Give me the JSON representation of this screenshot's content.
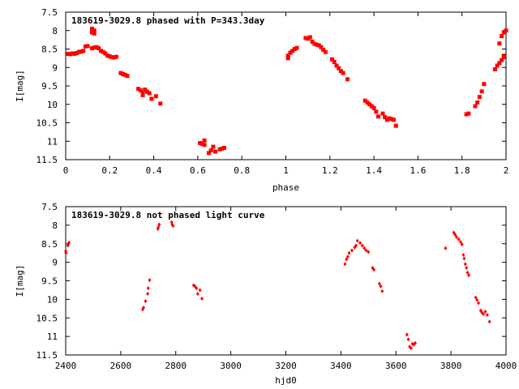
{
  "chart_data": [
    {
      "type": "scatter",
      "title": "183619-3029.8 phased with P=343.3day",
      "xlabel": "phase",
      "ylabel": "I[mag]",
      "xlim": [
        0,
        2
      ],
      "ylim": [
        7.5,
        11.5
      ],
      "y_inverted": true,
      "xticks": [
        "0",
        "0.2",
        "0.4",
        "0.6",
        "0.8",
        "1",
        "1.2",
        "1.4",
        "1.6",
        "1.8",
        "2"
      ],
      "yticks": [
        "7.5",
        "8",
        "8.5",
        "9",
        "9.5",
        "10",
        "10.5",
        "11",
        "11.5"
      ],
      "grid": false,
      "marker_color": "#ff0000",
      "series": [
        {
          "points": [
            [
              0.01,
              8.63
            ],
            [
              0.02,
              8.64
            ],
            [
              0.03,
              8.62
            ],
            [
              0.04,
              8.63
            ],
            [
              0.05,
              8.61
            ],
            [
              0.06,
              8.58
            ],
            [
              0.07,
              8.57
            ],
            [
              0.08,
              8.55
            ],
            [
              0.09,
              8.43
            ],
            [
              0.1,
              8.42
            ],
            [
              0.12,
              7.95
            ],
            [
              0.12,
              8.02
            ],
            [
              0.12,
              8.05
            ],
            [
              0.13,
              8.0
            ],
            [
              0.13,
              8.08
            ],
            [
              0.12,
              8.48
            ],
            [
              0.13,
              8.46
            ],
            [
              0.14,
              8.45
            ],
            [
              0.15,
              8.48
            ],
            [
              0.16,
              8.55
            ],
            [
              0.17,
              8.58
            ],
            [
              0.18,
              8.62
            ],
            [
              0.19,
              8.68
            ],
            [
              0.2,
              8.7
            ],
            [
              0.21,
              8.72
            ],
            [
              0.22,
              8.73
            ],
            [
              0.23,
              8.71
            ],
            [
              0.25,
              9.15
            ],
            [
              0.26,
              9.18
            ],
            [
              0.27,
              9.2
            ],
            [
              0.28,
              9.23
            ],
            [
              0.33,
              9.58
            ],
            [
              0.34,
              9.62
            ],
            [
              0.35,
              9.68
            ],
            [
              0.35,
              9.75
            ],
            [
              0.36,
              9.6
            ],
            [
              0.37,
              9.66
            ],
            [
              0.38,
              9.7
            ],
            [
              0.39,
              9.85
            ],
            [
              0.41,
              9.78
            ],
            [
              0.43,
              9.98
            ],
            [
              0.61,
              11.05
            ],
            [
              0.62,
              11.07
            ],
            [
              0.63,
              10.98
            ],
            [
              0.63,
              11.1
            ],
            [
              0.65,
              11.32
            ],
            [
              0.66,
              11.25
            ],
            [
              0.67,
              11.15
            ],
            [
              0.68,
              11.28
            ],
            [
              0.7,
              11.22
            ],
            [
              0.71,
              11.2
            ],
            [
              0.72,
              11.18
            ],
            [
              1.01,
              8.75
            ],
            [
              1.01,
              8.68
            ],
            [
              1.02,
              8.6
            ],
            [
              1.03,
              8.55
            ],
            [
              1.04,
              8.5
            ],
            [
              1.05,
              8.47
            ],
            [
              1.09,
              8.2
            ],
            [
              1.1,
              8.22
            ],
            [
              1.11,
              8.18
            ],
            [
              1.12,
              8.3
            ],
            [
              1.13,
              8.36
            ],
            [
              1.14,
              8.38
            ],
            [
              1.15,
              8.4
            ],
            [
              1.16,
              8.45
            ],
            [
              1.17,
              8.52
            ],
            [
              1.18,
              8.58
            ],
            [
              1.21,
              8.78
            ],
            [
              1.22,
              8.85
            ],
            [
              1.23,
              8.95
            ],
            [
              1.24,
              9.02
            ],
            [
              1.25,
              9.1
            ],
            [
              1.26,
              9.15
            ],
            [
              1.28,
              9.32
            ],
            [
              1.36,
              9.9
            ],
            [
              1.37,
              9.95
            ],
            [
              1.38,
              10.0
            ],
            [
              1.39,
              10.05
            ],
            [
              1.4,
              10.1
            ],
            [
              1.41,
              10.2
            ],
            [
              1.42,
              10.33
            ],
            [
              1.44,
              10.25
            ],
            [
              1.45,
              10.35
            ],
            [
              1.46,
              10.42
            ],
            [
              1.47,
              10.38
            ],
            [
              1.48,
              10.4
            ],
            [
              1.49,
              10.42
            ],
            [
              1.5,
              10.58
            ],
            [
              1.82,
              10.27
            ],
            [
              1.83,
              10.25
            ],
            [
              1.86,
              10.05
            ],
            [
              1.87,
              9.95
            ],
            [
              1.88,
              9.8
            ],
            [
              1.89,
              9.65
            ],
            [
              1.9,
              9.45
            ],
            [
              1.95,
              9.05
            ],
            [
              1.96,
              8.95
            ],
            [
              1.97,
              8.88
            ],
            [
              1.98,
              8.8
            ],
            [
              1.99,
              8.72
            ],
            [
              1.99,
              8.68
            ],
            [
              1.97,
              8.35
            ],
            [
              1.98,
              8.15
            ],
            [
              1.99,
              8.05
            ],
            [
              2.0,
              8.0
            ]
          ]
        }
      ]
    },
    {
      "type": "scatter",
      "title": "183619-3029.8 not phased light curve",
      "xlabel": "hjd0",
      "ylabel": "I[mag]",
      "xlim": [
        2400,
        4000
      ],
      "ylim": [
        7.5,
        11.5
      ],
      "y_inverted": true,
      "xticks": [
        "2400",
        "2600",
        "2800",
        "3000",
        "3200",
        "3400",
        "3600",
        "3800",
        "4000"
      ],
      "yticks": [
        "7.5",
        "8",
        "8.5",
        "9",
        "9.5",
        "10",
        "10.5",
        "11",
        "11.5"
      ],
      "grid": false,
      "marker_color": "#ff0000",
      "series": [
        {
          "points": [
            [
              2400,
              8.7
            ],
            [
              2401,
              8.75
            ],
            [
              2408,
              8.55
            ],
            [
              2410,
              8.5
            ],
            [
              2412,
              8.47
            ],
            [
              2680,
              10.27
            ],
            [
              2683,
              10.22
            ],
            [
              2690,
              10.05
            ],
            [
              2698,
              9.85
            ],
            [
              2700,
              9.7
            ],
            [
              2705,
              9.48
            ],
            [
              2735,
              8.1
            ],
            [
              2737,
              8.05
            ],
            [
              2740,
              7.98
            ],
            [
              2785,
              7.92
            ],
            [
              2787,
              7.98
            ],
            [
              2790,
              8.02
            ],
            [
              2865,
              9.62
            ],
            [
              2870,
              9.65
            ],
            [
              2875,
              9.7
            ],
            [
              2880,
              9.85
            ],
            [
              2888,
              9.75
            ],
            [
              2895,
              9.98
            ],
            [
              3415,
              9.05
            ],
            [
              3420,
              8.92
            ],
            [
              3425,
              8.85
            ],
            [
              3430,
              8.75
            ],
            [
              3440,
              8.68
            ],
            [
              3450,
              8.6
            ],
            [
              3455,
              8.55
            ],
            [
              3460,
              8.42
            ],
            [
              3470,
              8.48
            ],
            [
              3478,
              8.55
            ],
            [
              3485,
              8.62
            ],
            [
              3492,
              8.68
            ],
            [
              3500,
              8.72
            ],
            [
              3515,
              9.15
            ],
            [
              3520,
              9.2
            ],
            [
              3540,
              9.58
            ],
            [
              3545,
              9.65
            ],
            [
              3550,
              9.78
            ],
            [
              3640,
              10.95
            ],
            [
              3645,
              11.08
            ],
            [
              3650,
              11.28
            ],
            [
              3655,
              11.32
            ],
            [
              3660,
              11.2
            ],
            [
              3665,
              11.22
            ],
            [
              3670,
              11.18
            ],
            [
              3780,
              8.62
            ],
            [
              3810,
              8.2
            ],
            [
              3815,
              8.25
            ],
            [
              3820,
              8.32
            ],
            [
              3828,
              8.38
            ],
            [
              3835,
              8.45
            ],
            [
              3840,
              8.52
            ],
            [
              3845,
              8.8
            ],
            [
              3848,
              8.9
            ],
            [
              3852,
              9.05
            ],
            [
              3856,
              9.15
            ],
            [
              3860,
              9.28
            ],
            [
              3865,
              9.35
            ],
            [
              3890,
              9.95
            ],
            [
              3895,
              10.02
            ],
            [
              3900,
              10.1
            ],
            [
              3908,
              10.3
            ],
            [
              3912,
              10.35
            ],
            [
              3918,
              10.4
            ],
            [
              3925,
              10.33
            ],
            [
              3932,
              10.42
            ],
            [
              3940,
              10.6
            ]
          ]
        }
      ]
    }
  ]
}
